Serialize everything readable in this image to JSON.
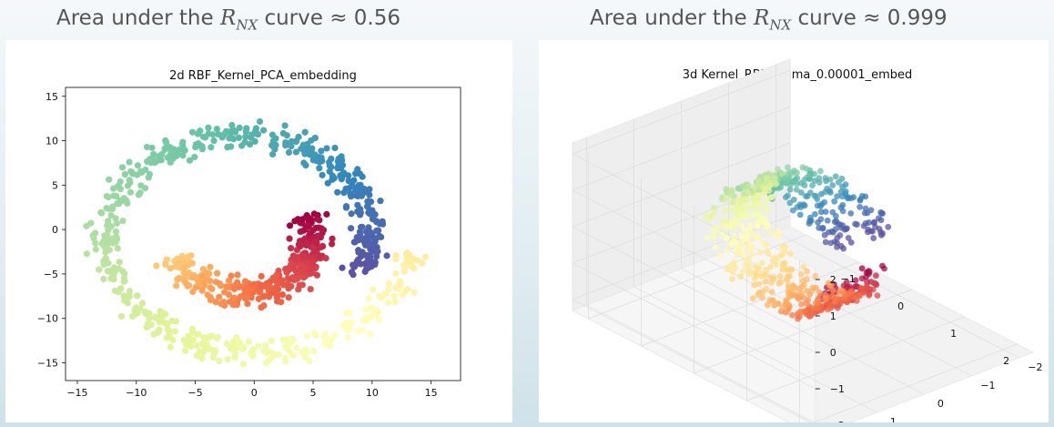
{
  "headings": [
    {
      "prefix": "Area under the",
      "var": "R",
      "sub": "NX",
      "suffix": "curve ≈ 0.56"
    },
    {
      "prefix": "Area under the",
      "var": "R",
      "sub": "NX",
      "suffix": "curve ≈ 0.999"
    }
  ],
  "chart_data": [
    {
      "type": "scatter",
      "title": "2d RBF_Kernel_PCA_embedding",
      "xlabel": "",
      "ylabel": "",
      "xlim": [
        -16,
        17.5
      ],
      "ylim": [
        -17,
        16
      ],
      "xticks": [
        -15,
        -10,
        -5,
        0,
        5,
        10,
        15
      ],
      "yticks": [
        -15,
        -10,
        -5,
        0,
        5,
        10,
        15
      ],
      "xtick_labels": [
        "−15",
        "−10",
        "−5",
        "0",
        "5",
        "10",
        "15"
      ],
      "ytick_labels": [
        "−15",
        "−10",
        "−5",
        "0",
        "5",
        "10",
        "15"
      ],
      "grid": false,
      "colormap": "Spectral",
      "series": [
        {
          "points_description_only": "",
          "shape": "swiss-roll spiral"
        }
      ]
    },
    {
      "type": "scatter",
      "title": "3d Kernel_RBF_Sigma_0.00001_embed",
      "xlabel": "",
      "ylabel": "",
      "zlabel": "",
      "projection": "3d",
      "xticks": [
        -1,
        0,
        1,
        2
      ],
      "yticks": [
        -2,
        -1,
        0,
        1,
        2
      ],
      "zticks": [
        -2,
        -1,
        0,
        1,
        2
      ],
      "xtick_labels": [
        "−1",
        "0",
        "1",
        "2"
      ],
      "ytick_labels": [
        "−2",
        "−1",
        "0",
        "1",
        "2"
      ],
      "ztick_labels": [
        "−2",
        "−1",
        "0",
        "1",
        "2"
      ],
      "grid": true,
      "colormap": "Spectral"
    }
  ]
}
